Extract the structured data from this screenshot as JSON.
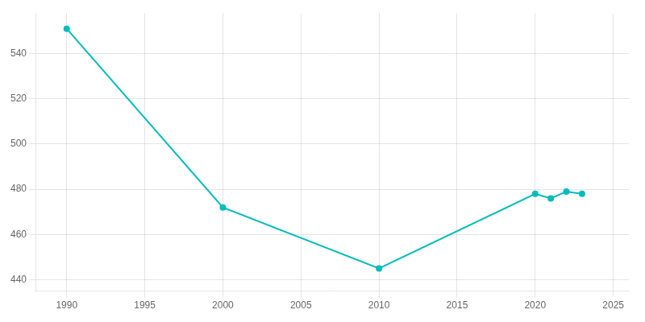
{
  "chart_data": {
    "type": "line",
    "x": [
      1990,
      2000,
      2010,
      2020,
      2021,
      2022,
      2023
    ],
    "values": [
      551,
      472,
      445,
      478,
      476,
      479,
      478
    ],
    "color": "#00BCBC",
    "marker": "circle",
    "xlim": [
      1988,
      2026
    ],
    "ylim": [
      435,
      558
    ],
    "xticks": [
      1990,
      1995,
      2000,
      2005,
      2010,
      2015,
      2020,
      2025
    ],
    "yticks": [
      440,
      460,
      480,
      500,
      520,
      540
    ],
    "grid": true
  }
}
